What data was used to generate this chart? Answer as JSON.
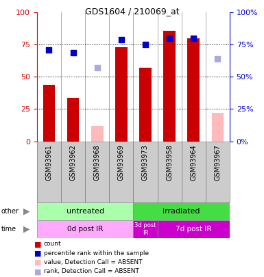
{
  "title": "GDS1604 / 210069_at",
  "samples": [
    "GSM93961",
    "GSM93962",
    "GSM93968",
    "GSM93969",
    "GSM93973",
    "GSM93958",
    "GSM93964",
    "GSM93967"
  ],
  "bar_values": [
    44,
    34,
    null,
    73,
    57,
    86,
    80,
    null
  ],
  "absent_bar_values": [
    null,
    null,
    12,
    null,
    null,
    null,
    null,
    22
  ],
  "rank_values": [
    71,
    69,
    null,
    79,
    75,
    80,
    80,
    null
  ],
  "rank_absent_values": [
    null,
    null,
    57,
    null,
    null,
    null,
    null,
    64
  ],
  "ylim": [
    0,
    100
  ],
  "yticks": [
    0,
    25,
    50,
    75,
    100
  ],
  "grid_lines": [
    25,
    50,
    75
  ],
  "group_other": [
    {
      "label": "untreated",
      "start": 0,
      "end": 4,
      "color": "#aaffaa"
    },
    {
      "label": "irradiated",
      "start": 4,
      "end": 8,
      "color": "#44dd44"
    }
  ],
  "group_time": [
    {
      "label": "0d post IR",
      "start": 0,
      "end": 4,
      "color": "#ffaaff"
    },
    {
      "label": "3d post\nIR",
      "start": 4,
      "end": 5,
      "color": "#cc00cc"
    },
    {
      "label": "7d post IR",
      "start": 5,
      "end": 8,
      "color": "#cc00cc"
    }
  ],
  "bar_color": "#cc0000",
  "absent_bar_color": "#ffbbbb",
  "rank_color": "#0000cc",
  "rank_absent_color": "#aaaadd",
  "bar_width": 0.5,
  "dot_size": 40,
  "left_axis_color": "#cc0000",
  "right_axis_color": "#0000cc",
  "tick_bg_color": "#cccccc",
  "tick_border_color": "#888888",
  "background_color": "#ffffff",
  "legend_items": [
    {
      "label": "count",
      "color": "#cc0000"
    },
    {
      "label": "percentile rank within the sample",
      "color": "#0000cc"
    },
    {
      "label": "value, Detection Call = ABSENT",
      "color": "#ffbbbb"
    },
    {
      "label": "rank, Detection Call = ABSENT",
      "color": "#aaaadd"
    }
  ]
}
